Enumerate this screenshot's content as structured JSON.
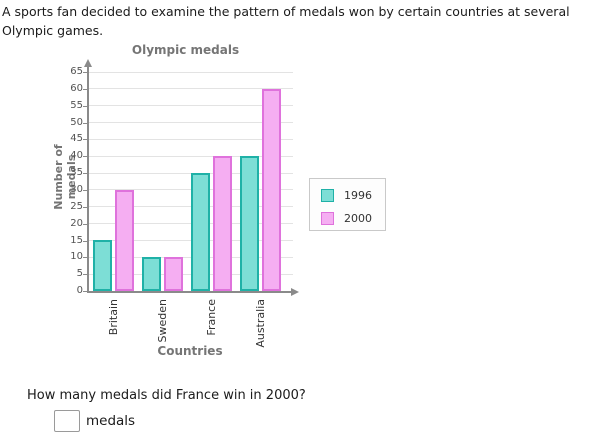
{
  "intro": "A sports fan decided to examine the pattern of medals won by certain countries at several Olympic games.",
  "chart_data": {
    "type": "bar",
    "title": "Olympic medals",
    "xlabel": "Countries",
    "ylabel": "Number of medals",
    "categories": [
      "Britain",
      "Sweden",
      "France",
      "Australia"
    ],
    "series": [
      {
        "name": "1996",
        "values": [
          15,
          10,
          35,
          40
        ],
        "fill": "#7DDED6",
        "stroke": "#1FB1A7"
      },
      {
        "name": "2000",
        "values": [
          30,
          10,
          40,
          60
        ],
        "fill": "#F5AEF2",
        "stroke": "#DF72DC"
      }
    ],
    "ylim": [
      0,
      65
    ],
    "ytick_step": 5,
    "grid": true,
    "legend_position": "right",
    "colors": {
      "axis": "#8a8a8a",
      "gridline": "#e3e3e3",
      "chart_text": "#757575",
      "tick_text": "#545454"
    }
  },
  "question": {
    "text": "How many medals did France win in 2000?",
    "input_value": "",
    "unit_label": "medals"
  }
}
